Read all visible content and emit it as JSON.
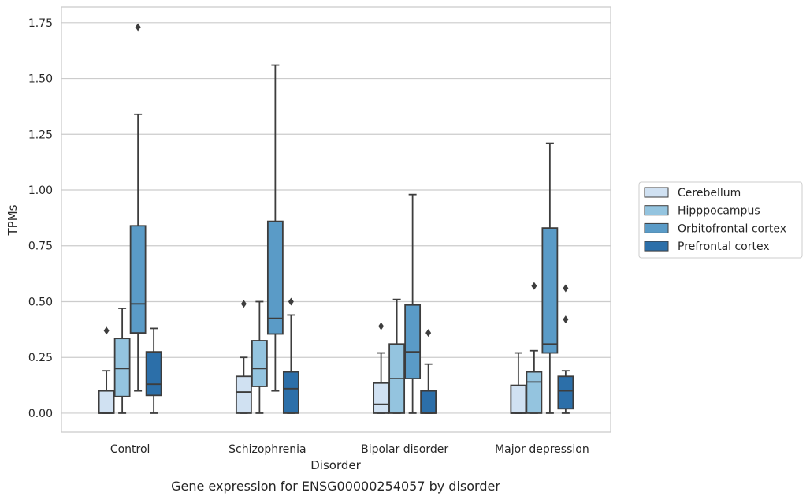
{
  "chart_data": {
    "type": "box",
    "title": "",
    "caption": "Gene expression for ENSG00000254057 by disorder",
    "xlabel": "Disorder",
    "ylabel": "TPMs",
    "ylim": [
      -0.085,
      1.82
    ],
    "yticks": [
      "0.00",
      "0.25",
      "0.50",
      "0.75",
      "1.00",
      "1.25",
      "1.50",
      "1.75"
    ],
    "categories": [
      "Control",
      "Schizophrenia",
      "Bipolar disorder",
      "Major depression"
    ],
    "grid": "horizontal",
    "legend_position": "right",
    "series": [
      {
        "name": "Cerebellum",
        "color": "#d0e1f2",
        "boxes": [
          {
            "category": "Control",
            "whislo": 0.0,
            "q1": 0.0,
            "med": 0.0,
            "q3": 0.1,
            "whishi": 0.19,
            "fliers": [
              0.37
            ]
          },
          {
            "category": "Schizophrenia",
            "whislo": 0.0,
            "q1": 0.0,
            "med": 0.095,
            "q3": 0.165,
            "whishi": 0.25,
            "fliers": [
              0.49
            ]
          },
          {
            "category": "Bipolar disorder",
            "whislo": 0.0,
            "q1": 0.0,
            "med": 0.04,
            "q3": 0.135,
            "whishi": 0.27,
            "fliers": [
              0.39
            ]
          },
          {
            "category": "Major depression",
            "whislo": 0.0,
            "q1": 0.0,
            "med": 0.0,
            "q3": 0.125,
            "whishi": 0.27,
            "fliers": []
          }
        ]
      },
      {
        "name": "Hipppocampus",
        "color": "#94c4df",
        "boxes": [
          {
            "category": "Control",
            "whislo": 0.0,
            "q1": 0.075,
            "med": 0.2,
            "q3": 0.335,
            "whishi": 0.47,
            "fliers": []
          },
          {
            "category": "Schizophrenia",
            "whislo": 0.0,
            "q1": 0.12,
            "med": 0.2,
            "q3": 0.325,
            "whishi": 0.5,
            "fliers": []
          },
          {
            "category": "Bipolar disorder",
            "whislo": 0.0,
            "q1": 0.0,
            "med": 0.155,
            "q3": 0.31,
            "whishi": 0.51,
            "fliers": []
          },
          {
            "category": "Major depression",
            "whislo": 0.0,
            "q1": 0.0,
            "med": 0.14,
            "q3": 0.185,
            "whishi": 0.28,
            "fliers": [
              0.57
            ]
          }
        ]
      },
      {
        "name": "Orbitofrontal cortex",
        "color": "#5a9bc7",
        "boxes": [
          {
            "category": "Control",
            "whislo": 0.1,
            "q1": 0.36,
            "med": 0.49,
            "q3": 0.84,
            "whishi": 1.34,
            "fliers": [
              1.73
            ]
          },
          {
            "category": "Schizophrenia",
            "whislo": 0.1,
            "q1": 0.355,
            "med": 0.425,
            "q3": 0.86,
            "whishi": 1.56,
            "fliers": []
          },
          {
            "category": "Bipolar disorder",
            "whislo": 0.0,
            "q1": 0.155,
            "med": 0.275,
            "q3": 0.485,
            "whishi": 0.98,
            "fliers": []
          },
          {
            "category": "Major depression",
            "whislo": 0.0,
            "q1": 0.27,
            "med": 0.31,
            "q3": 0.83,
            "whishi": 1.21,
            "fliers": []
          }
        ]
      },
      {
        "name": "Prefrontal cortex",
        "color": "#2c6fa9",
        "boxes": [
          {
            "category": "Control",
            "whislo": 0.0,
            "q1": 0.08,
            "med": 0.13,
            "q3": 0.275,
            "whishi": 0.38,
            "fliers": []
          },
          {
            "category": "Schizophrenia",
            "whislo": 0.0,
            "q1": 0.0,
            "med": 0.11,
            "q3": 0.185,
            "whishi": 0.44,
            "fliers": [
              0.5
            ]
          },
          {
            "category": "Bipolar disorder",
            "whislo": 0.0,
            "q1": 0.0,
            "med": 0.0,
            "q3": 0.1,
            "whishi": 0.22,
            "fliers": [
              0.36
            ]
          },
          {
            "category": "Major depression",
            "whislo": 0.0,
            "q1": 0.02,
            "med": 0.1,
            "q3": 0.165,
            "whishi": 0.19,
            "fliers": [
              0.42,
              0.56
            ]
          }
        ]
      }
    ]
  }
}
